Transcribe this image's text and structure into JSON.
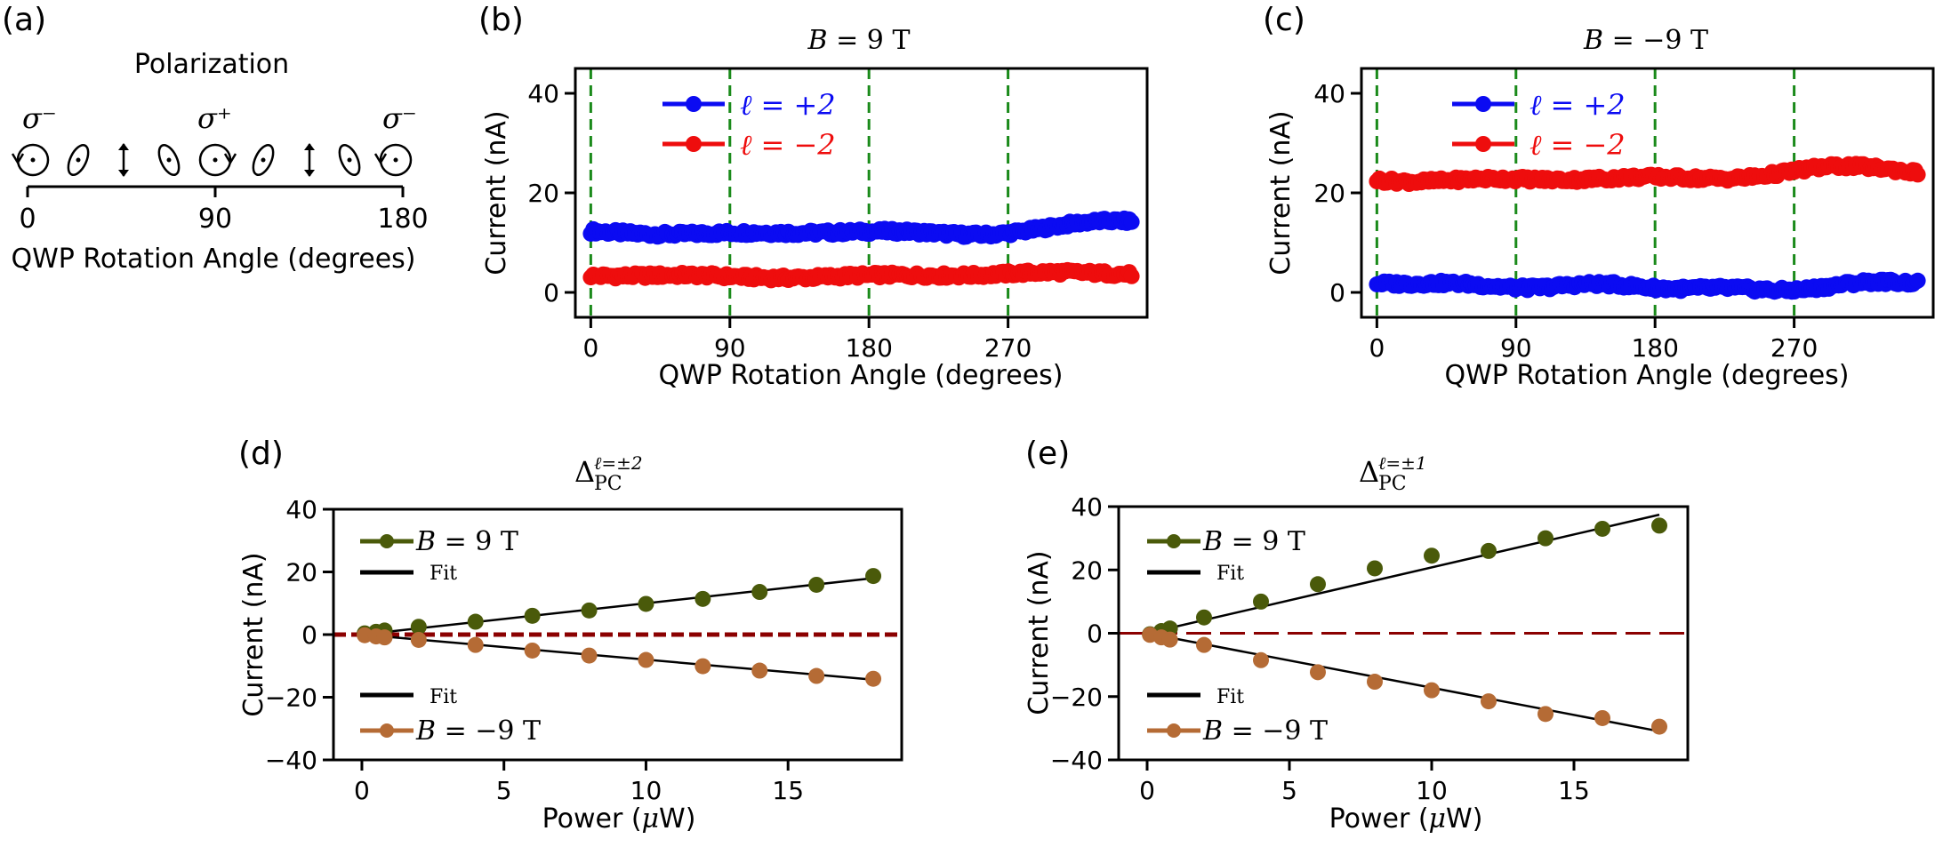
{
  "colors": {
    "blue": "#0b0bf2",
    "red": "#ee0d0d",
    "olive": "#4a5a0a",
    "orange": "#b56b35",
    "green_dash": "#1a8a1a",
    "dark_red_dash": "#8b0000",
    "black": "#000000"
  },
  "panel_a": {
    "label": "(a)",
    "title": "Polarization",
    "sigma_left": "σ⁻",
    "sigma_mid": "σ⁺",
    "sigma_right": "σ⁻",
    "ticks": [
      "0",
      "90",
      "180"
    ],
    "xlabel": "QWP Rotation Angle (degrees)",
    "states": [
      "circ-ccw",
      "ellipse-right",
      "linear",
      "ellipse-left",
      "circ-cw",
      "ellipse-right",
      "linear",
      "ellipse-left",
      "circ-ccw"
    ]
  },
  "chart_data": [
    {
      "id": "b",
      "type": "scatter",
      "panel_label": "(b)",
      "title_sym": "B",
      "title_eq": " = 9 ",
      "title_unit": "T",
      "xlabel": "QWP Rotation Angle (degrees)",
      "ylabel": "Current (nA)",
      "xlim": [
        -10,
        360
      ],
      "ylim": [
        -5,
        45
      ],
      "xticks": [
        0,
        90,
        180,
        270
      ],
      "yticks": [
        0,
        20,
        40
      ],
      "vlines": [
        0,
        90,
        180,
        270
      ],
      "legend_loc": "upper-left",
      "series": [
        {
          "name": "ℓ = +2",
          "color": "blue",
          "base": 11.3,
          "amp": [
            [
              1,
              0.6
            ],
            [
              2,
              0.5
            ],
            [
              3,
              0.3
            ]
          ],
          "trend": 2.0
        },
        {
          "name": "ℓ = −2",
          "color": "red",
          "base": 3.3,
          "amp": [
            [
              1,
              0.3
            ],
            [
              3,
              0.2
            ]
          ],
          "trend": 0.3
        }
      ]
    },
    {
      "id": "c",
      "type": "scatter",
      "panel_label": "(c)",
      "title_sym": "B",
      "title_eq": " = −9 ",
      "title_unit": "T",
      "xlabel": "QWP Rotation Angle (degrees)",
      "ylabel": "Current (nA)",
      "xlim": [
        -10,
        360
      ],
      "ylim": [
        -5,
        45
      ],
      "xticks": [
        0,
        90,
        180,
        270
      ],
      "yticks": [
        0,
        20,
        40
      ],
      "vlines": [
        0,
        90,
        180,
        270
      ],
      "legend_loc": "upper-left",
      "series": [
        {
          "name": "ℓ = +2",
          "color": "blue",
          "base": 1.3,
          "amp": [
            [
              1,
              0.5
            ],
            [
              2,
              0.4
            ],
            [
              4,
              0.3
            ]
          ],
          "trend": 0.0
        },
        {
          "name": "ℓ = −2",
          "color": "red",
          "base": 22.6,
          "amp": [
            [
              1,
              0.6
            ],
            [
              2,
              0.5
            ],
            [
              3,
              0.4
            ]
          ],
          "trend": 1.5
        }
      ]
    },
    {
      "id": "d",
      "type": "scatter",
      "panel_label": "(d)",
      "title_main": "Δ",
      "title_sub": "PC",
      "title_sup": "ℓ=±2",
      "xlabel_pre": "Power (",
      "xlabel_mu": "μ",
      "xlabel_post": "W)",
      "ylabel": "Current (nA)",
      "xlim": [
        -1,
        19
      ],
      "ylim": [
        -40,
        40
      ],
      "xticks": [
        0,
        5,
        10,
        15
      ],
      "yticks": [
        -40,
        -20,
        0,
        20,
        40
      ],
      "hline_style": "short",
      "x": [
        0.1,
        0.5,
        0.8,
        2,
        4,
        6,
        8,
        10,
        12,
        14,
        16,
        18
      ],
      "series": [
        {
          "name": "B = 9 T",
          "sym": "B",
          "eq": " = 9 ",
          "unit": "T",
          "color": "olive",
          "y": [
            0.4,
            0.9,
            1.3,
            2.5,
            4.1,
            6.0,
            7.7,
            9.8,
            11.4,
            13.6,
            15.9,
            18.7
          ]
        },
        {
          "name": "B = −9 T",
          "sym": "B",
          "eq": " = −9 ",
          "unit": "T",
          "color": "orange",
          "y": [
            -0.2,
            -0.6,
            -0.9,
            -1.7,
            -3.3,
            -5.1,
            -6.7,
            -8.1,
            -10.1,
            -11.5,
            -13.2,
            -14.1
          ]
        }
      ],
      "fits": [
        {
          "label": "Fit",
          "slope": 1.0,
          "intercept": 0.0
        },
        {
          "label": "Fit",
          "slope": -0.8,
          "intercept": 0.0
        }
      ]
    },
    {
      "id": "e",
      "type": "scatter",
      "panel_label": "(e)",
      "title_main": "Δ",
      "title_sub": "PC",
      "title_sup": "ℓ=±1",
      "xlabel_pre": "Power (",
      "xlabel_mu": "μ",
      "xlabel_post": "W)",
      "ylabel": "Current (nA)",
      "xlim": [
        -1,
        19
      ],
      "ylim": [
        -40,
        40
      ],
      "xticks": [
        0,
        5,
        10,
        15
      ],
      "yticks": [
        -40,
        -20,
        0,
        20,
        40
      ],
      "hline_style": "long",
      "x": [
        0.1,
        0.5,
        0.8,
        2,
        4,
        6,
        8,
        10,
        12,
        14,
        16,
        18
      ],
      "series": [
        {
          "name": "B = 9 T",
          "sym": "B",
          "eq": " = 9 ",
          "unit": "T",
          "color": "olive",
          "y": [
            -0.3,
            0.7,
            1.5,
            5.0,
            10.0,
            15.5,
            20.5,
            24.5,
            26.0,
            30.0,
            33.0,
            34.0
          ]
        },
        {
          "name": "B = −9 T",
          "sym": "B",
          "eq": " = −9 ",
          "unit": "T",
          "color": "orange",
          "y": [
            -0.5,
            -1.3,
            -2.0,
            -3.7,
            -8.5,
            -12.3,
            -15.3,
            -18.0,
            -21.5,
            -25.5,
            -26.8,
            -29.5
          ]
        }
      ],
      "fits": [
        {
          "label": "Fit",
          "slope": 2.08,
          "intercept": 0.0
        },
        {
          "label": "Fit",
          "slope": -1.72,
          "intercept": 0.0
        }
      ]
    }
  ]
}
